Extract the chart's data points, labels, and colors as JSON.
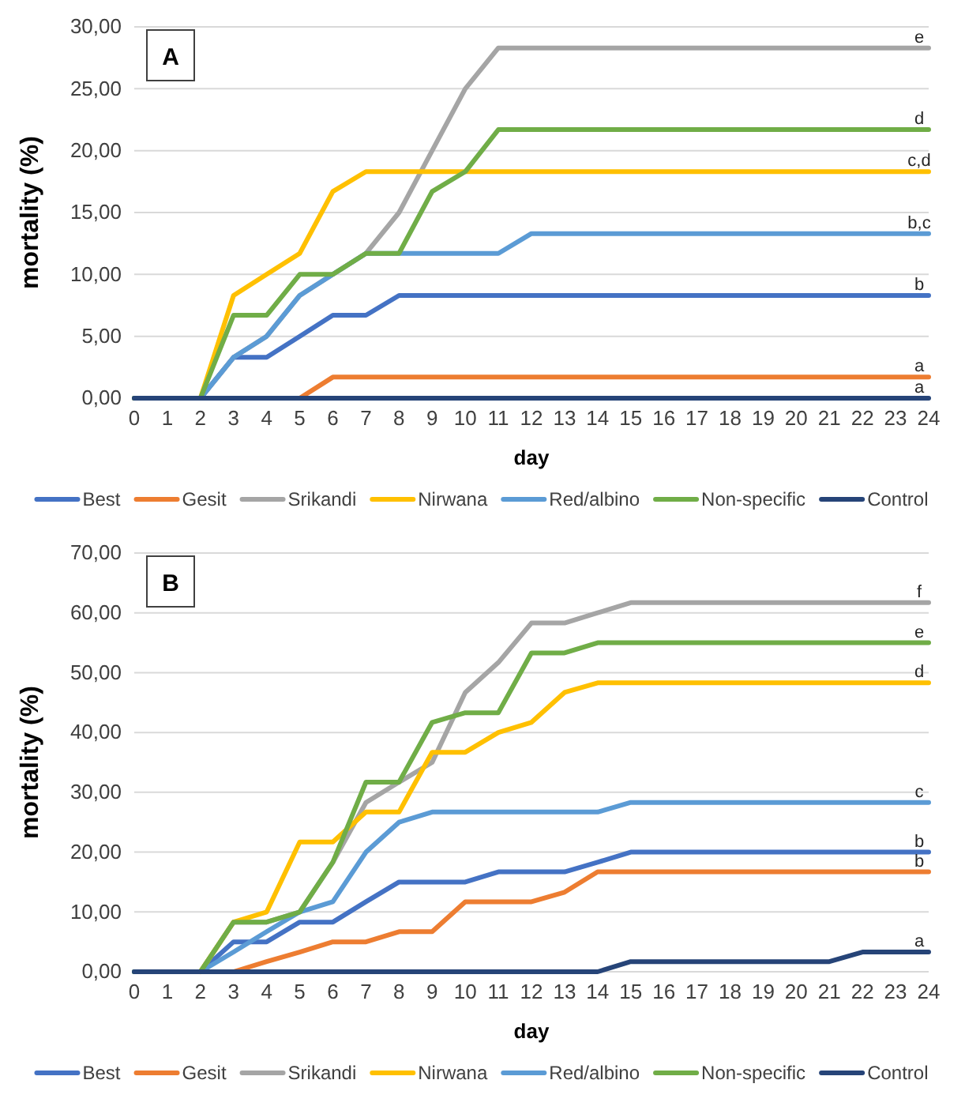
{
  "chart_data": [
    {
      "type": "line",
      "title": "A",
      "xlabel": "day",
      "ylabel": "mortality (%)",
      "x": [
        0,
        1,
        2,
        3,
        4,
        5,
        6,
        7,
        8,
        9,
        10,
        11,
        12,
        13,
        14,
        15,
        16,
        17,
        18,
        19,
        20,
        21,
        22,
        23,
        24
      ],
      "xlim": [
        0,
        24
      ],
      "xticks": [
        0,
        1,
        2,
        3,
        4,
        5,
        6,
        7,
        8,
        9,
        10,
        11,
        12,
        13,
        14,
        15,
        16,
        17,
        18,
        19,
        20,
        21,
        22,
        23,
        24
      ],
      "ylim": [
        0,
        30
      ],
      "yticks": [
        {
          "value": 0,
          "label": "0,00"
        },
        {
          "value": 5,
          "label": "5,00"
        },
        {
          "value": 10,
          "label": "10,00"
        },
        {
          "value": 15,
          "label": "15,00"
        },
        {
          "value": 20,
          "label": "20,00"
        },
        {
          "value": 25,
          "label": "25,00"
        },
        {
          "value": 30,
          "label": "30,00"
        }
      ],
      "grid": "y",
      "legend": "bottom",
      "line_style": "solid",
      "marker": "none",
      "series": [
        {
          "name": "Best",
          "color": "#4472c4",
          "values": [
            0,
            0,
            0,
            3.3,
            3.3,
            5,
            6.7,
            6.7,
            8.3,
            8.3,
            8.3,
            8.3,
            8.3,
            8.3,
            8.3,
            8.3,
            8.3,
            8.3,
            8.3,
            8.3,
            8.3,
            8.3,
            8.3,
            8.3,
            8.3
          ]
        },
        {
          "name": "Gesit",
          "color": "#ed7d31",
          "values": [
            null,
            null,
            null,
            null,
            0,
            0,
            1.7,
            1.7,
            1.7,
            1.7,
            1.7,
            1.7,
            1.7,
            1.7,
            1.7,
            1.7,
            1.7,
            1.7,
            1.7,
            1.7,
            1.7,
            1.7,
            1.7,
            1.7,
            1.7
          ]
        },
        {
          "name": "Srikandi",
          "color": "#a5a5a5",
          "values": [
            0,
            0,
            0,
            3.3,
            5,
            8.3,
            10,
            11.7,
            15,
            20,
            25,
            28.3,
            28.3,
            28.3,
            28.3,
            28.3,
            28.3,
            28.3,
            28.3,
            28.3,
            28.3,
            28.3,
            28.3,
            28.3,
            28.3
          ]
        },
        {
          "name": "Nirwana",
          "color": "#ffc000",
          "values": [
            0,
            0,
            0,
            8.3,
            10,
            11.7,
            16.7,
            18.3,
            18.3,
            18.3,
            18.3,
            18.3,
            18.3,
            18.3,
            18.3,
            18.3,
            18.3,
            18.3,
            18.3,
            18.3,
            18.3,
            18.3,
            18.3,
            18.3,
            18.3
          ]
        },
        {
          "name": "Red/albino",
          "color": "#5b9bd5",
          "values": [
            0,
            0,
            0,
            3.3,
            5,
            8.3,
            10,
            11.7,
            11.7,
            11.7,
            11.7,
            11.7,
            13.3,
            13.3,
            13.3,
            13.3,
            13.3,
            13.3,
            13.3,
            13.3,
            13.3,
            13.3,
            13.3,
            13.3,
            13.3
          ]
        },
        {
          "name": "Non-specific",
          "color": "#70ad47",
          "values": [
            0,
            0,
            0,
            6.7,
            6.7,
            10,
            10,
            11.7,
            11.7,
            16.7,
            18.3,
            21.7,
            21.7,
            21.7,
            21.7,
            21.7,
            21.7,
            21.7,
            21.7,
            21.7,
            21.7,
            21.7,
            21.7,
            21.7,
            21.7
          ]
        },
        {
          "name": "Control",
          "color": "#264478",
          "values": [
            0,
            0,
            0,
            0,
            0,
            0,
            0,
            0,
            0,
            0,
            0,
            0,
            0,
            0,
            0,
            0,
            0,
            0,
            0,
            0,
            0,
            0,
            0,
            0,
            0
          ]
        }
      ],
      "annotations": [
        {
          "text": "e",
          "y": 28.3
        },
        {
          "text": "d",
          "y": 21.7
        },
        {
          "text": "c,d",
          "y": 18.3
        },
        {
          "text": "b,c",
          "y": 13.3
        },
        {
          "text": "b",
          "y": 8.3
        },
        {
          "text": "a",
          "y": 1.7
        },
        {
          "text": "a",
          "y": 0
        }
      ]
    },
    {
      "type": "line",
      "title": "B",
      "xlabel": "day",
      "ylabel": "mortality (%)",
      "x": [
        0,
        1,
        2,
        3,
        4,
        5,
        6,
        7,
        8,
        9,
        10,
        11,
        12,
        13,
        14,
        15,
        16,
        17,
        18,
        19,
        20,
        21,
        22,
        23,
        24
      ],
      "xlim": [
        0,
        24
      ],
      "xticks": [
        0,
        1,
        2,
        3,
        4,
        5,
        6,
        7,
        8,
        9,
        10,
        11,
        12,
        13,
        14,
        15,
        16,
        17,
        18,
        19,
        20,
        21,
        22,
        23,
        24
      ],
      "ylim": [
        0,
        70
      ],
      "yticks": [
        {
          "value": 0,
          "label": "0,00"
        },
        {
          "value": 10,
          "label": "10,00"
        },
        {
          "value": 20,
          "label": "20,00"
        },
        {
          "value": 30,
          "label": "30,00"
        },
        {
          "value": 40,
          "label": "40,00"
        },
        {
          "value": 50,
          "label": "50,00"
        },
        {
          "value": 60,
          "label": "60,00"
        },
        {
          "value": 70,
          "label": "70,00"
        }
      ],
      "grid": "y",
      "legend": "bottom",
      "line_style": "solid",
      "marker": "none",
      "series": [
        {
          "name": "Best",
          "color": "#4472c4",
          "values": [
            0,
            0,
            0,
            5,
            5,
            8.3,
            8.3,
            11.7,
            15,
            15,
            15,
            16.7,
            16.7,
            16.7,
            18.3,
            20,
            20,
            20,
            20,
            20,
            20,
            20,
            20,
            20,
            20
          ]
        },
        {
          "name": "Gesit",
          "color": "#ed7d31",
          "values": [
            null,
            null,
            0,
            0,
            1.7,
            3.3,
            5,
            5,
            6.7,
            6.7,
            11.7,
            11.7,
            11.7,
            13.3,
            16.7,
            16.7,
            16.7,
            16.7,
            16.7,
            16.7,
            16.7,
            16.7,
            16.7,
            16.7,
            16.7
          ]
        },
        {
          "name": "Srikandi",
          "color": "#a5a5a5",
          "values": [
            0,
            0,
            0,
            8.3,
            8.3,
            10,
            18.3,
            28.3,
            31.7,
            35,
            46.7,
            51.7,
            58.3,
            58.3,
            60,
            61.7,
            61.7,
            61.7,
            61.7,
            61.7,
            61.7,
            61.7,
            61.7,
            61.7,
            61.7
          ]
        },
        {
          "name": "Nirwana",
          "color": "#ffc000",
          "values": [
            null,
            null,
            0,
            8.3,
            10,
            21.7,
            21.7,
            26.7,
            26.7,
            36.7,
            36.7,
            40,
            41.7,
            46.7,
            48.3,
            48.3,
            48.3,
            48.3,
            48.3,
            48.3,
            48.3,
            48.3,
            48.3,
            48.3,
            48.3
          ]
        },
        {
          "name": "Red/albino",
          "color": "#5b9bd5",
          "values": [
            0,
            0,
            0,
            3.3,
            6.7,
            10,
            11.7,
            20,
            25,
            26.7,
            26.7,
            26.7,
            26.7,
            26.7,
            26.7,
            28.3,
            28.3,
            28.3,
            28.3,
            28.3,
            28.3,
            28.3,
            28.3,
            28.3,
            28.3
          ]
        },
        {
          "name": "Non-specific",
          "color": "#70ad47",
          "values": [
            0,
            0,
            0,
            8.3,
            8.3,
            10,
            18.3,
            31.7,
            31.7,
            41.7,
            43.3,
            43.3,
            53.3,
            53.3,
            55,
            55,
            55,
            55,
            55,
            55,
            55,
            55,
            55,
            55,
            55
          ]
        },
        {
          "name": "Control",
          "color": "#264478",
          "values": [
            0,
            0,
            0,
            0,
            0,
            0,
            0,
            0,
            0,
            0,
            0,
            0,
            0,
            0,
            0,
            1.7,
            1.7,
            1.7,
            1.7,
            1.7,
            1.7,
            1.7,
            3.3,
            3.3,
            3.3
          ]
        }
      ],
      "annotations": [
        {
          "text": "f",
          "y": 61.7
        },
        {
          "text": "e",
          "y": 55
        },
        {
          "text": "d",
          "y": 48.3
        },
        {
          "text": "c",
          "y": 28.3
        },
        {
          "text": "b",
          "y": 20
        },
        {
          "text": "b",
          "y": 16.7
        },
        {
          "text": "a",
          "y": 3.3
        }
      ]
    }
  ]
}
